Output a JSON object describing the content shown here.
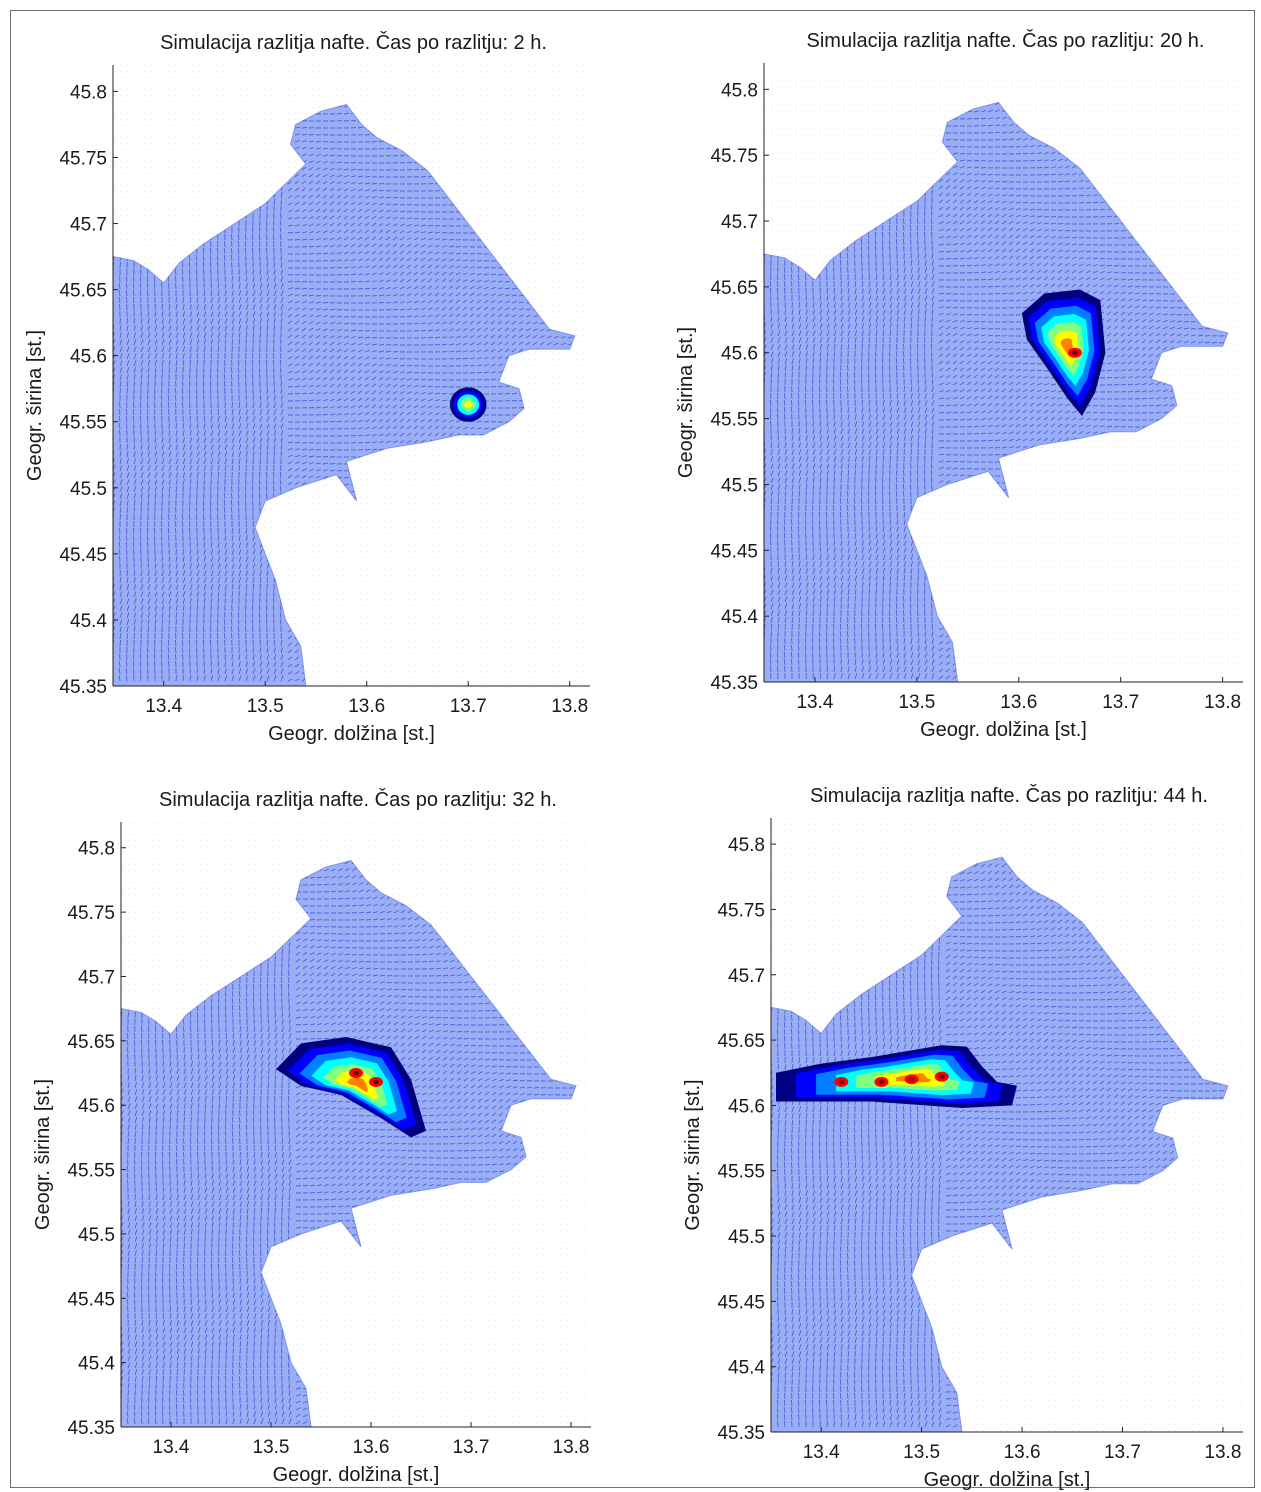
{
  "chart_data": [
    {
      "type": "heatmap",
      "title": "Simulacija razlitja nafte. Čas po razlitju: 2 h.",
      "xlabel": "Geogr. dolžina [st.]",
      "ylabel": "Geogr. širina [st.]",
      "xlim": [
        13.35,
        13.82
      ],
      "ylim": [
        45.35,
        45.82
      ],
      "xticks": [
        "13.4",
        "13.5",
        "13.6",
        "13.7",
        "13.8"
      ],
      "yticks": [
        "45.35",
        "45.4",
        "45.45",
        "45.5",
        "45.55",
        "45.6",
        "45.65",
        "45.7",
        "45.75",
        "45.8"
      ],
      "grid": true,
      "spill": {
        "shape": "blob",
        "center": [
          13.7,
          45.563
        ],
        "rx": 0.018,
        "ry": 0.013,
        "peak": 0.75
      }
    },
    {
      "type": "heatmap",
      "title": "Simulacija razlitja nafte. Čas po razlitju: 20 h.",
      "xlabel": "Geogr. dolžina [st.]",
      "ylabel": "Geogr. širina [st.]",
      "xlim": [
        13.35,
        13.82
      ],
      "ylim": [
        45.35,
        45.82
      ],
      "xticks": [
        "13.4",
        "13.5",
        "13.6",
        "13.7",
        "13.8"
      ],
      "yticks": [
        "45.35",
        "45.4",
        "45.45",
        "45.5",
        "45.55",
        "45.6",
        "45.65",
        "45.7",
        "45.75",
        "45.8"
      ],
      "grid": true,
      "spill": {
        "shape": "path",
        "peak": 1.0,
        "hotspots": [
          [
            13.655,
            45.6
          ]
        ],
        "outline": [
          [
            13.603,
            45.63
          ],
          [
            13.625,
            45.645
          ],
          [
            13.66,
            45.648
          ],
          [
            13.68,
            45.64
          ],
          [
            13.685,
            45.6
          ],
          [
            13.675,
            45.57
          ],
          [
            13.662,
            45.552
          ],
          [
            13.648,
            45.565
          ],
          [
            13.628,
            45.588
          ],
          [
            13.608,
            45.61
          ]
        ]
      }
    },
    {
      "type": "heatmap",
      "title": "Simulacija razlitja nafte. Čas po razlitju: 32 h.",
      "xlabel": "Geogr. dolžina [st.]",
      "ylabel": "Geogr. širina [st.]",
      "xlim": [
        13.35,
        13.82
      ],
      "ylim": [
        45.35,
        45.82
      ],
      "xticks": [
        "13.4",
        "13.5",
        "13.6",
        "13.7",
        "13.8"
      ],
      "yticks": [
        "45.35",
        "45.4",
        "45.45",
        "45.5",
        "45.55",
        "45.6",
        "45.65",
        "45.7",
        "45.75",
        "45.8"
      ],
      "grid": true,
      "spill": {
        "shape": "path",
        "peak": 0.95,
        "hotspots": [
          [
            13.585,
            45.625
          ],
          [
            13.605,
            45.618
          ]
        ],
        "outline": [
          [
            13.505,
            45.628
          ],
          [
            13.53,
            45.648
          ],
          [
            13.575,
            45.653
          ],
          [
            13.62,
            45.645
          ],
          [
            13.64,
            45.62
          ],
          [
            13.655,
            45.58
          ],
          [
            13.64,
            45.575
          ],
          [
            13.61,
            45.59
          ],
          [
            13.57,
            45.608
          ],
          [
            13.53,
            45.615
          ]
        ]
      }
    },
    {
      "type": "heatmap",
      "title": "Simulacija razlitja nafte. Čas po razlitju: 44 h.",
      "xlabel": "Geogr. dolžina [st.]",
      "ylabel": "Geogr. širina [st.]",
      "xlim": [
        13.35,
        13.82
      ],
      "ylim": [
        45.35,
        45.82
      ],
      "xticks": [
        "13.4",
        "13.5",
        "13.6",
        "13.7",
        "13.8"
      ],
      "yticks": [
        "45.35",
        "45.4",
        "45.45",
        "45.5",
        "45.55",
        "45.6",
        "45.65",
        "45.7",
        "45.75",
        "45.8"
      ],
      "grid": true,
      "spill": {
        "shape": "path",
        "peak": 0.95,
        "hotspots": [
          [
            13.42,
            45.618
          ],
          [
            13.46,
            45.618
          ],
          [
            13.49,
            45.62
          ],
          [
            13.52,
            45.622
          ]
        ],
        "outline": [
          [
            13.355,
            45.625
          ],
          [
            13.4,
            45.632
          ],
          [
            13.45,
            45.637
          ],
          [
            13.52,
            45.646
          ],
          [
            13.545,
            45.645
          ],
          [
            13.56,
            45.63
          ],
          [
            13.575,
            45.618
          ],
          [
            13.595,
            45.615
          ],
          [
            13.59,
            45.6
          ],
          [
            13.54,
            45.598
          ],
          [
            13.45,
            45.603
          ],
          [
            13.355,
            45.603
          ]
        ]
      }
    }
  ],
  "colors": {
    "water": "#9aaef5",
    "vector": "#3346d8",
    "axis": "#222222",
    "colormap": [
      "#000080",
      "#0000ff",
      "#0080ff",
      "#00ffff",
      "#80ff80",
      "#ffff00",
      "#ff8000",
      "#ff0000",
      "#800000"
    ]
  }
}
